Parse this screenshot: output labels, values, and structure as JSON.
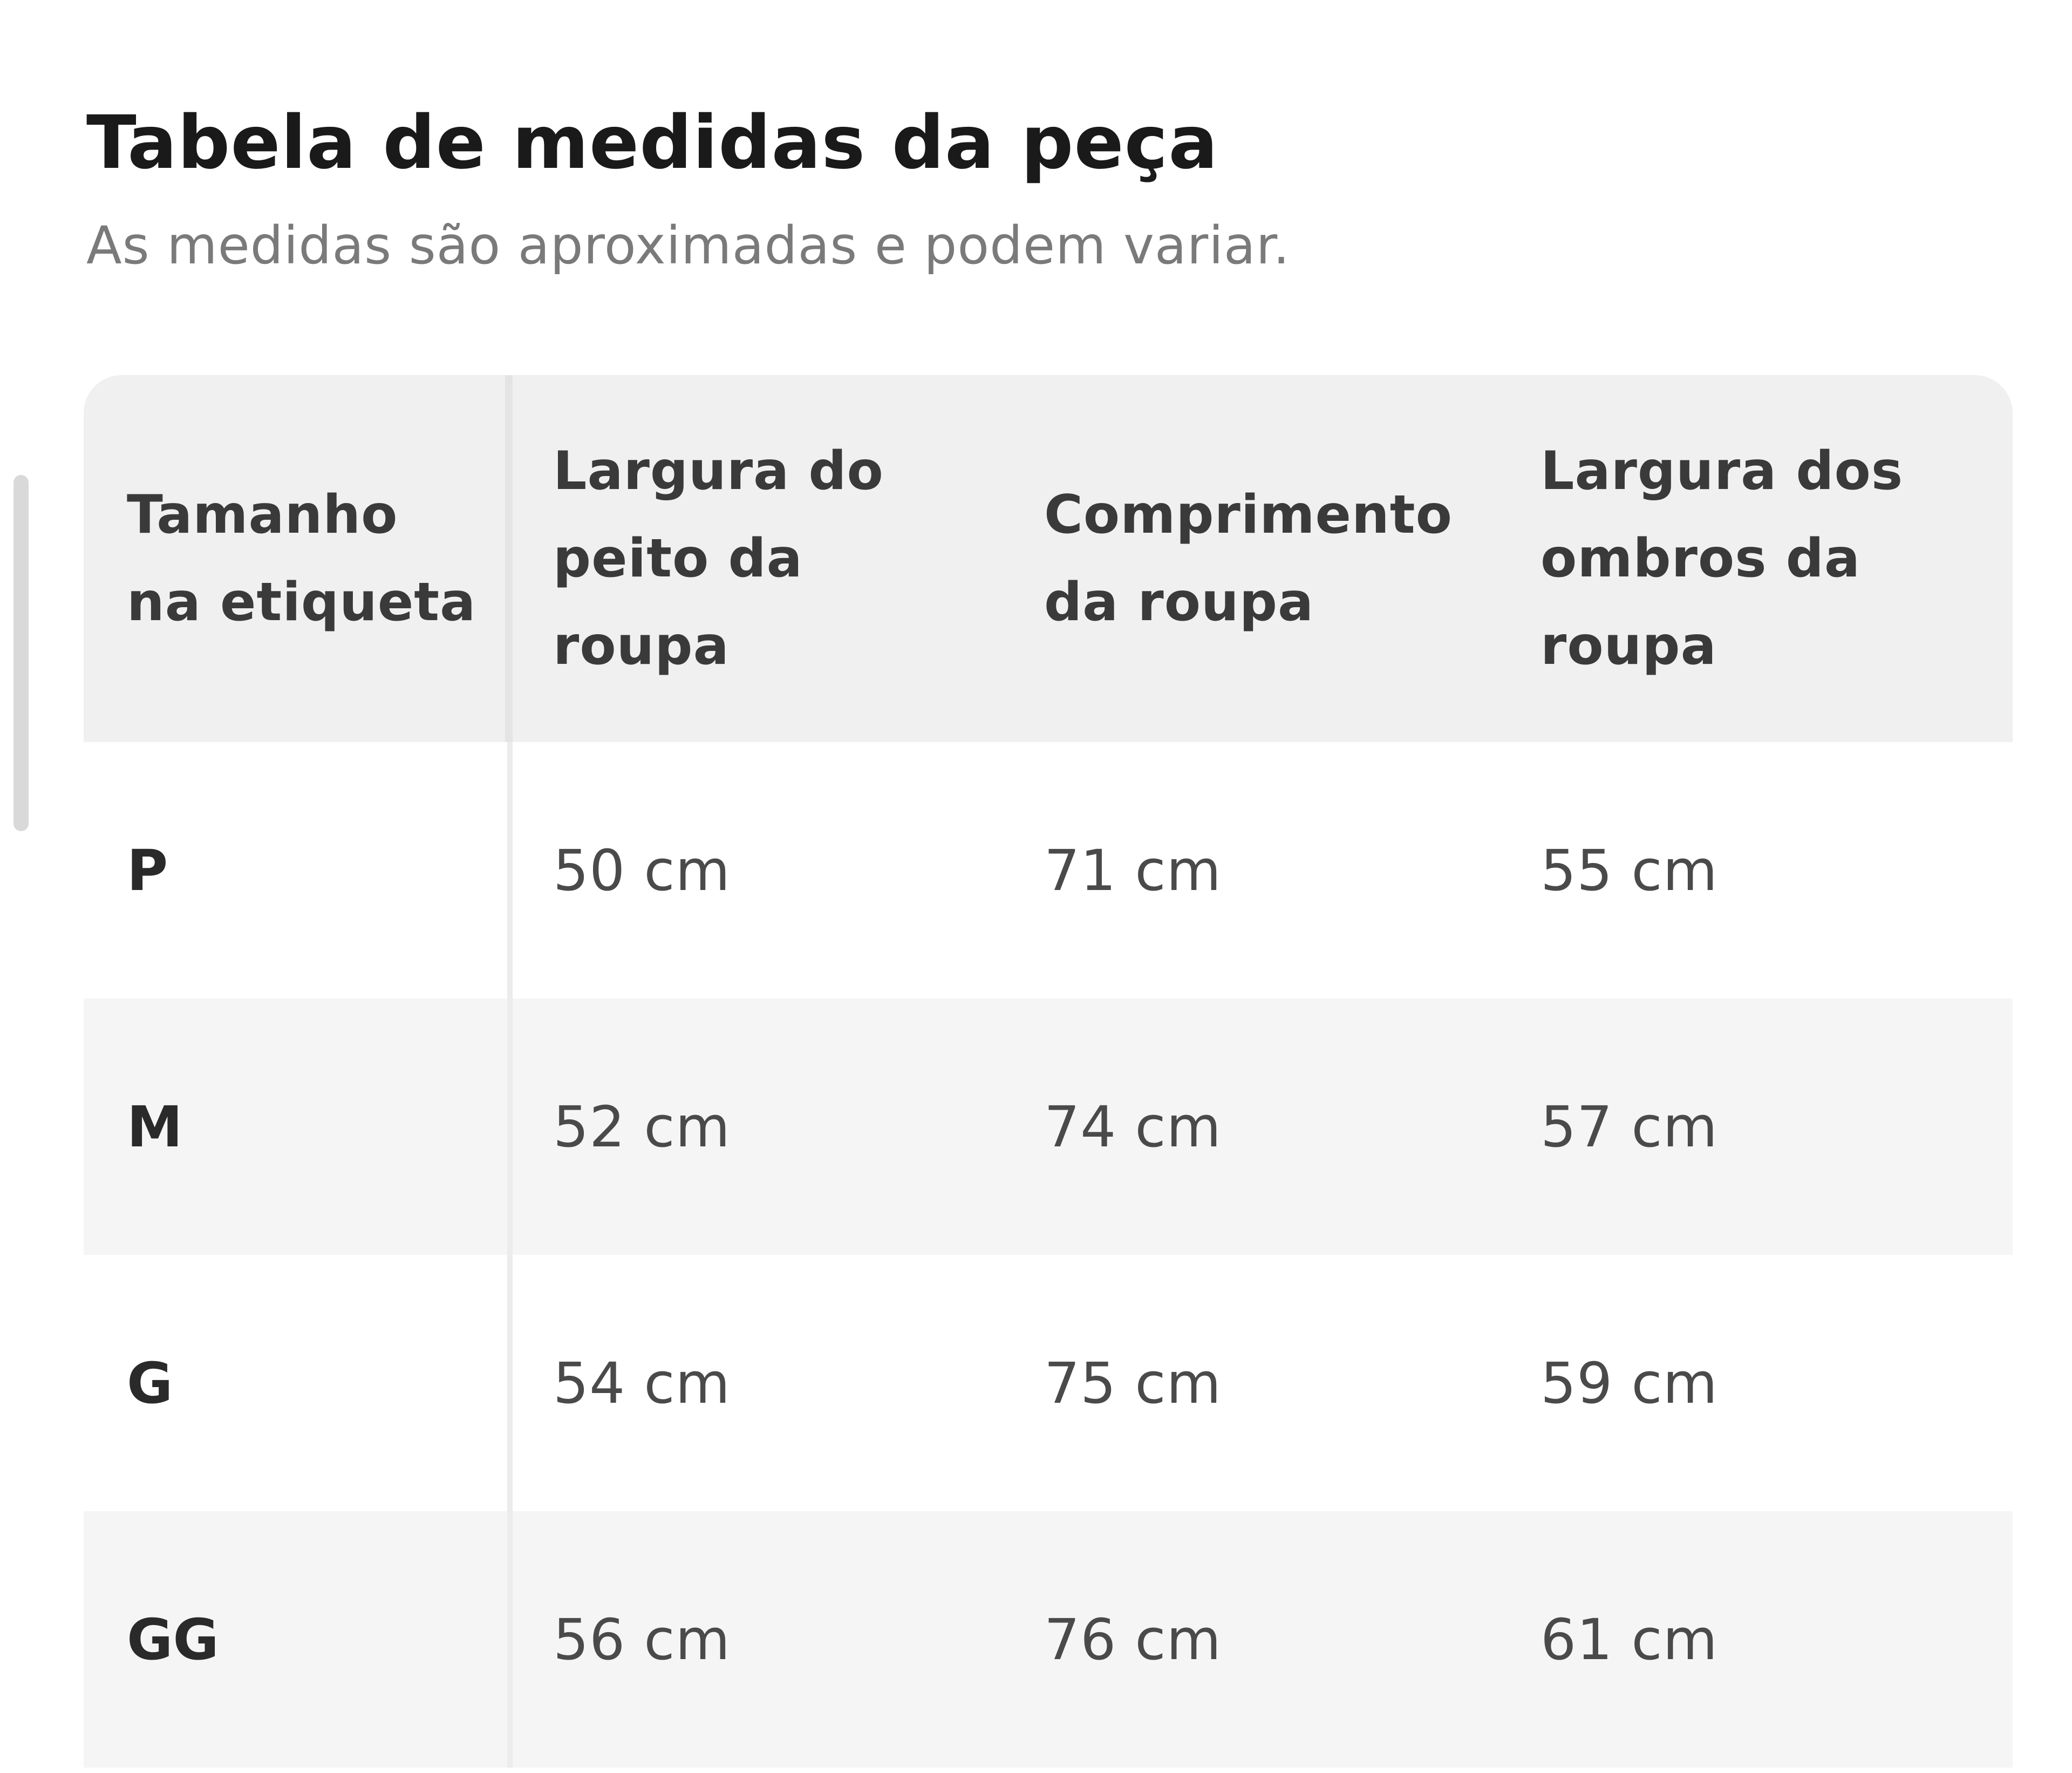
{
  "page": {
    "title": "Tabela de medidas da peça",
    "subtitle": "As medidas são aproximadas e podem variar."
  },
  "table": {
    "headers": [
      "Tamanho\nna etiqueta",
      "Largura do\npeito da\nroupa",
      "Comprimento\nda roupa",
      "Largura dos\nombros da\nroupa"
    ],
    "rows": [
      {
        "size": "P",
        "chest": "50 cm",
        "length": "71 cm",
        "shoulders": "55 cm"
      },
      {
        "size": "M",
        "chest": "52 cm",
        "length": "74 cm",
        "shoulders": "57 cm"
      },
      {
        "size": "G",
        "chest": "54 cm",
        "length": "75 cm",
        "shoulders": "59 cm"
      },
      {
        "size": "GG",
        "chest": "56 cm",
        "length": "76 cm",
        "shoulders": "61 cm"
      }
    ]
  },
  "colors": {
    "header_bg": "#f0f0f0",
    "stripe_bg": "#f5f5f5",
    "title_text": "#1a1a1a",
    "subtitle_text": "#7a7a7a"
  }
}
